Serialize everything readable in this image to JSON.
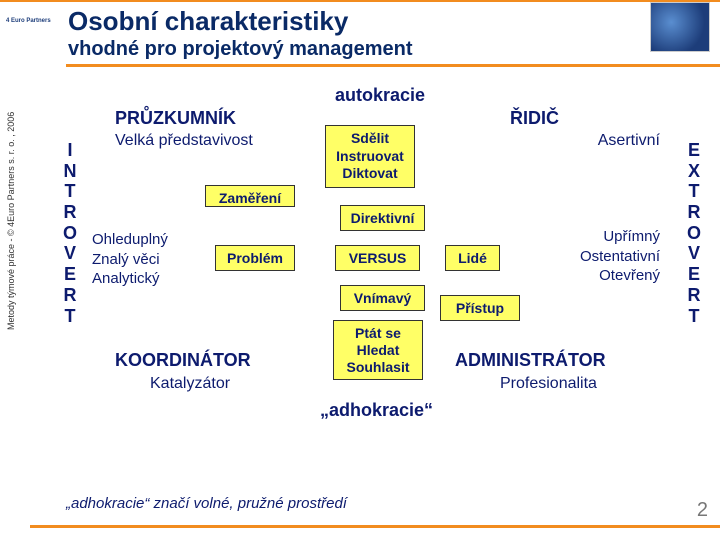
{
  "header": {
    "title": "Osobní charakteristiky",
    "subtitle": "vhodné pro projektový management",
    "accent_color": "#f28c1f",
    "title_color": "#0a2a66"
  },
  "copyright": "Metody týmové práce - © 4Euro Partners s. r. o. , 2006",
  "small_logo": "4 Euro Partners",
  "diagram": {
    "top_label": "autokracie",
    "quadrants": {
      "top_left": {
        "title": "PRŮZKUMNÍK",
        "subtitle": "Velká představivost"
      },
      "top_right": {
        "title": "ŘIDIČ",
        "subtitle": "Asertivní"
      },
      "bottom_left": {
        "title": "KOORDINÁTOR",
        "subtitle": "Katalyzátor"
      },
      "bottom_right": {
        "title": "ADMINISTRÁTOR",
        "subtitle": "Profesionalita"
      }
    },
    "boxes": {
      "sdelit": "Sdělit\nInstruovat\nDiktovat",
      "zamereni": "Zaměření",
      "direktivni": "Direktivní",
      "problem": "Problém",
      "versus": "VERSUS",
      "lide": "Lidé",
      "vnimavy": "Vnímavý",
      "pristup": "Přístup",
      "ptat": "Ptát se\nHledat\nSouhlasit",
      "box_bg": "#ffff66",
      "box_text_color": "#0d1b6e"
    },
    "left_vertical_letters": [
      "I",
      "N",
      "T",
      "R",
      "O",
      "V",
      "E",
      "R",
      "T"
    ],
    "right_vertical_letters": [
      "E",
      "X",
      "T",
      "R",
      "O",
      "V",
      "E",
      "R",
      "T"
    ],
    "traits": {
      "top_left": "Ohleduplný\nZnalý věci\nAnalytický",
      "top_right": "Upřímný\nOstentativní\nOtevřený"
    },
    "bottom_label": "„adhokracie“",
    "text_color": "#0d1b6e"
  },
  "footer": {
    "note": "„adhokracie“ značí volné, pružné prostředí",
    "page_number": "2"
  }
}
